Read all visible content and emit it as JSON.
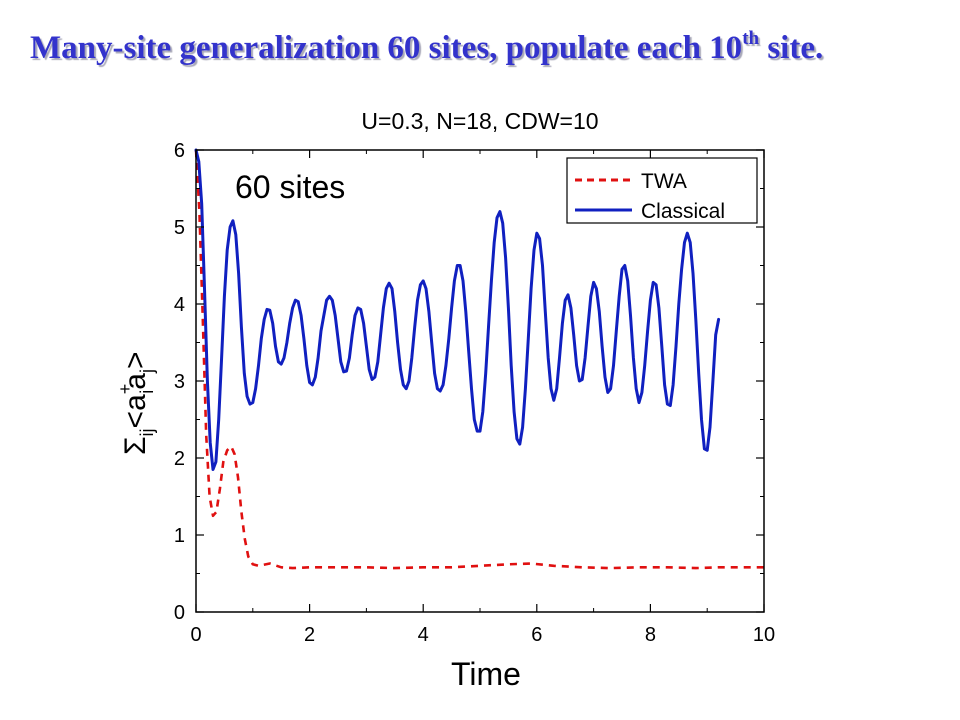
{
  "slide": {
    "title_main": "Many-site generalization 60 sites, populate each 10",
    "title_sup": "th",
    "title_end": " site."
  },
  "chart_data": {
    "type": "line",
    "title": "U=0.3, N=18, CDW=10",
    "annotation": "60 sites",
    "xlabel": "Time",
    "ylabel_parts": {
      "sum": "Σ",
      "sum_sub": "ij",
      "open": "<a",
      "dagger": "+",
      "a_sub_i": "i",
      "a2": "a",
      "a_sub_j": "j",
      "close": ">"
    },
    "xlim": [
      0,
      10
    ],
    "ylim": [
      0,
      6
    ],
    "xticks": [
      0,
      2,
      4,
      6,
      8,
      10
    ],
    "yticks": [
      0,
      1,
      2,
      3,
      4,
      5,
      6
    ],
    "grid": false,
    "legend_position": "top-right",
    "series": [
      {
        "name": "TWA",
        "color": "#e01010",
        "style": "dashed",
        "points": [
          [
            0,
            6.0
          ],
          [
            0.06,
            5.2
          ],
          [
            0.12,
            3.8
          ],
          [
            0.18,
            2.3
          ],
          [
            0.24,
            1.5
          ],
          [
            0.3,
            1.25
          ],
          [
            0.36,
            1.3
          ],
          [
            0.42,
            1.6
          ],
          [
            0.48,
            1.95
          ],
          [
            0.55,
            2.1
          ],
          [
            0.62,
            2.15
          ],
          [
            0.68,
            2.05
          ],
          [
            0.74,
            1.75
          ],
          [
            0.8,
            1.3
          ],
          [
            0.86,
            0.95
          ],
          [
            0.92,
            0.72
          ],
          [
            1.0,
            0.62
          ],
          [
            1.1,
            0.6
          ],
          [
            1.3,
            0.63
          ],
          [
            1.5,
            0.58
          ],
          [
            1.7,
            0.57
          ],
          [
            2.0,
            0.58
          ],
          [
            2.5,
            0.58
          ],
          [
            3.0,
            0.58
          ],
          [
            3.5,
            0.57
          ],
          [
            4.0,
            0.58
          ],
          [
            4.5,
            0.58
          ],
          [
            5.0,
            0.6
          ],
          [
            5.5,
            0.62
          ],
          [
            5.9,
            0.63
          ],
          [
            6.3,
            0.6
          ],
          [
            6.8,
            0.58
          ],
          [
            7.3,
            0.57
          ],
          [
            7.8,
            0.58
          ],
          [
            8.3,
            0.58
          ],
          [
            8.8,
            0.57
          ],
          [
            9.2,
            0.58
          ],
          [
            9.6,
            0.58
          ],
          [
            10.0,
            0.58
          ]
        ]
      },
      {
        "name": "Classical",
        "color": "#1020c0",
        "style": "solid",
        "points": [
          [
            0,
            6.0
          ],
          [
            0.05,
            5.85
          ],
          [
            0.1,
            5.3
          ],
          [
            0.15,
            4.2
          ],
          [
            0.2,
            3.0
          ],
          [
            0.25,
            2.2
          ],
          [
            0.3,
            1.85
          ],
          [
            0.35,
            1.95
          ],
          [
            0.4,
            2.5
          ],
          [
            0.45,
            3.3
          ],
          [
            0.5,
            4.1
          ],
          [
            0.55,
            4.7
          ],
          [
            0.6,
            5.0
          ],
          [
            0.65,
            5.08
          ],
          [
            0.7,
            4.9
          ],
          [
            0.75,
            4.4
          ],
          [
            0.8,
            3.7
          ],
          [
            0.85,
            3.1
          ],
          [
            0.9,
            2.8
          ],
          [
            0.95,
            2.7
          ],
          [
            1.0,
            2.72
          ],
          [
            1.05,
            2.9
          ],
          [
            1.1,
            3.2
          ],
          [
            1.15,
            3.55
          ],
          [
            1.2,
            3.8
          ],
          [
            1.25,
            3.93
          ],
          [
            1.3,
            3.92
          ],
          [
            1.35,
            3.75
          ],
          [
            1.4,
            3.45
          ],
          [
            1.45,
            3.25
          ],
          [
            1.5,
            3.22
          ],
          [
            1.55,
            3.3
          ],
          [
            1.6,
            3.5
          ],
          [
            1.65,
            3.75
          ],
          [
            1.7,
            3.95
          ],
          [
            1.75,
            4.05
          ],
          [
            1.8,
            4.03
          ],
          [
            1.85,
            3.85
          ],
          [
            1.9,
            3.55
          ],
          [
            1.95,
            3.2
          ],
          [
            2.0,
            2.98
          ],
          [
            2.05,
            2.95
          ],
          [
            2.1,
            3.05
          ],
          [
            2.15,
            3.3
          ],
          [
            2.2,
            3.65
          ],
          [
            2.3,
            4.05
          ],
          [
            2.35,
            4.1
          ],
          [
            2.4,
            4.05
          ],
          [
            2.45,
            3.85
          ],
          [
            2.5,
            3.55
          ],
          [
            2.55,
            3.25
          ],
          [
            2.6,
            3.12
          ],
          [
            2.65,
            3.13
          ],
          [
            2.7,
            3.3
          ],
          [
            2.75,
            3.6
          ],
          [
            2.8,
            3.85
          ],
          [
            2.85,
            3.95
          ],
          [
            2.9,
            3.93
          ],
          [
            2.95,
            3.75
          ],
          [
            3.0,
            3.45
          ],
          [
            3.05,
            3.15
          ],
          [
            3.1,
            3.02
          ],
          [
            3.15,
            3.05
          ],
          [
            3.2,
            3.25
          ],
          [
            3.25,
            3.6
          ],
          [
            3.3,
            3.95
          ],
          [
            3.35,
            4.2
          ],
          [
            3.4,
            4.27
          ],
          [
            3.45,
            4.2
          ],
          [
            3.5,
            3.9
          ],
          [
            3.55,
            3.5
          ],
          [
            3.6,
            3.15
          ],
          [
            3.65,
            2.95
          ],
          [
            3.7,
            2.9
          ],
          [
            3.75,
            3.0
          ],
          [
            3.8,
            3.3
          ],
          [
            3.85,
            3.7
          ],
          [
            3.9,
            4.05
          ],
          [
            3.95,
            4.25
          ],
          [
            4.0,
            4.3
          ],
          [
            4.05,
            4.2
          ],
          [
            4.1,
            3.9
          ],
          [
            4.15,
            3.5
          ],
          [
            4.2,
            3.1
          ],
          [
            4.25,
            2.9
          ],
          [
            4.3,
            2.87
          ],
          [
            4.35,
            2.95
          ],
          [
            4.4,
            3.2
          ],
          [
            4.45,
            3.55
          ],
          [
            4.5,
            3.95
          ],
          [
            4.55,
            4.3
          ],
          [
            4.6,
            4.5
          ],
          [
            4.65,
            4.5
          ],
          [
            4.7,
            4.3
          ],
          [
            4.75,
            3.9
          ],
          [
            4.8,
            3.4
          ],
          [
            4.85,
            2.9
          ],
          [
            4.9,
            2.5
          ],
          [
            4.95,
            2.35
          ],
          [
            5.0,
            2.35
          ],
          [
            5.05,
            2.6
          ],
          [
            5.1,
            3.1
          ],
          [
            5.15,
            3.7
          ],
          [
            5.2,
            4.3
          ],
          [
            5.25,
            4.8
          ],
          [
            5.3,
            5.12
          ],
          [
            5.35,
            5.2
          ],
          [
            5.4,
            5.05
          ],
          [
            5.45,
            4.6
          ],
          [
            5.5,
            3.95
          ],
          [
            5.55,
            3.2
          ],
          [
            5.6,
            2.6
          ],
          [
            5.65,
            2.25
          ],
          [
            5.7,
            2.18
          ],
          [
            5.75,
            2.4
          ],
          [
            5.8,
            2.9
          ],
          [
            5.85,
            3.55
          ],
          [
            5.9,
            4.2
          ],
          [
            5.95,
            4.7
          ],
          [
            6.0,
            4.92
          ],
          [
            6.05,
            4.85
          ],
          [
            6.1,
            4.5
          ],
          [
            6.15,
            3.9
          ],
          [
            6.2,
            3.3
          ],
          [
            6.25,
            2.9
          ],
          [
            6.3,
            2.75
          ],
          [
            6.35,
            2.9
          ],
          [
            6.4,
            3.3
          ],
          [
            6.45,
            3.75
          ],
          [
            6.5,
            4.05
          ],
          [
            6.55,
            4.12
          ],
          [
            6.6,
            3.95
          ],
          [
            6.65,
            3.6
          ],
          [
            6.7,
            3.2
          ],
          [
            6.75,
            3.0
          ],
          [
            6.8,
            3.02
          ],
          [
            6.85,
            3.3
          ],
          [
            6.9,
            3.7
          ],
          [
            6.95,
            4.1
          ],
          [
            7.0,
            4.28
          ],
          [
            7.05,
            4.2
          ],
          [
            7.1,
            3.9
          ],
          [
            7.15,
            3.45
          ],
          [
            7.2,
            3.05
          ],
          [
            7.25,
            2.85
          ],
          [
            7.3,
            2.9
          ],
          [
            7.35,
            3.2
          ],
          [
            7.4,
            3.65
          ],
          [
            7.45,
            4.1
          ],
          [
            7.5,
            4.45
          ],
          [
            7.55,
            4.5
          ],
          [
            7.6,
            4.3
          ],
          [
            7.65,
            3.85
          ],
          [
            7.7,
            3.3
          ],
          [
            7.75,
            2.9
          ],
          [
            7.8,
            2.72
          ],
          [
            7.85,
            2.85
          ],
          [
            7.9,
            3.2
          ],
          [
            7.95,
            3.65
          ],
          [
            8.0,
            4.05
          ],
          [
            8.05,
            4.28
          ],
          [
            8.1,
            4.25
          ],
          [
            8.15,
            3.95
          ],
          [
            8.2,
            3.45
          ],
          [
            8.25,
            2.95
          ],
          [
            8.3,
            2.7
          ],
          [
            8.35,
            2.68
          ],
          [
            8.4,
            2.95
          ],
          [
            8.45,
            3.45
          ],
          [
            8.5,
            4.0
          ],
          [
            8.55,
            4.45
          ],
          [
            8.6,
            4.8
          ],
          [
            8.65,
            4.92
          ],
          [
            8.7,
            4.8
          ],
          [
            8.75,
            4.4
          ],
          [
            8.8,
            3.8
          ],
          [
            8.85,
            3.1
          ],
          [
            8.9,
            2.5
          ],
          [
            8.95,
            2.12
          ],
          [
            9.0,
            2.1
          ],
          [
            9.05,
            2.4
          ],
          [
            9.1,
            3.0
          ],
          [
            9.15,
            3.6
          ],
          [
            9.2,
            3.8
          ]
        ]
      }
    ]
  }
}
